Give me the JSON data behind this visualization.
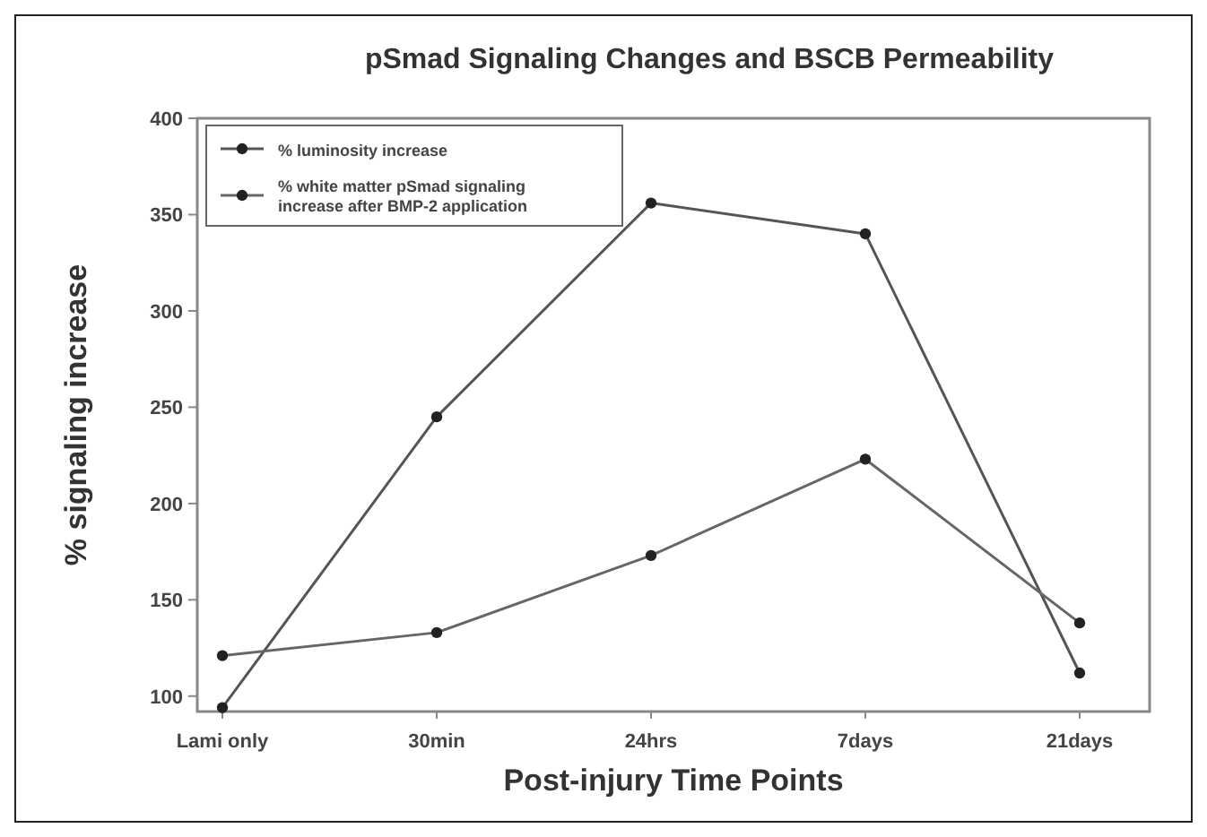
{
  "chart_data": {
    "type": "line",
    "title": "pSmad Signaling Changes and BSCB Permeability",
    "xlabel": "Post-injury Time Points",
    "ylabel": "% signaling increase",
    "categories": [
      "Lami only",
      "30min",
      "24hrs",
      "7days",
      "21days"
    ],
    "series": [
      {
        "name": "% luminosity increase",
        "color": "#555555",
        "values": [
          94,
          245,
          356,
          340,
          112
        ]
      },
      {
        "name": "% white matter pSmad signaling increase after BMP-2 application",
        "color": "#666666",
        "values": [
          121,
          133,
          173,
          223,
          138
        ]
      }
    ],
    "ylim": [
      92,
      400
    ],
    "yticks": [
      100,
      150,
      200,
      250,
      300,
      350,
      400
    ],
    "legend": "top left",
    "marker": "circle",
    "grid": false
  }
}
